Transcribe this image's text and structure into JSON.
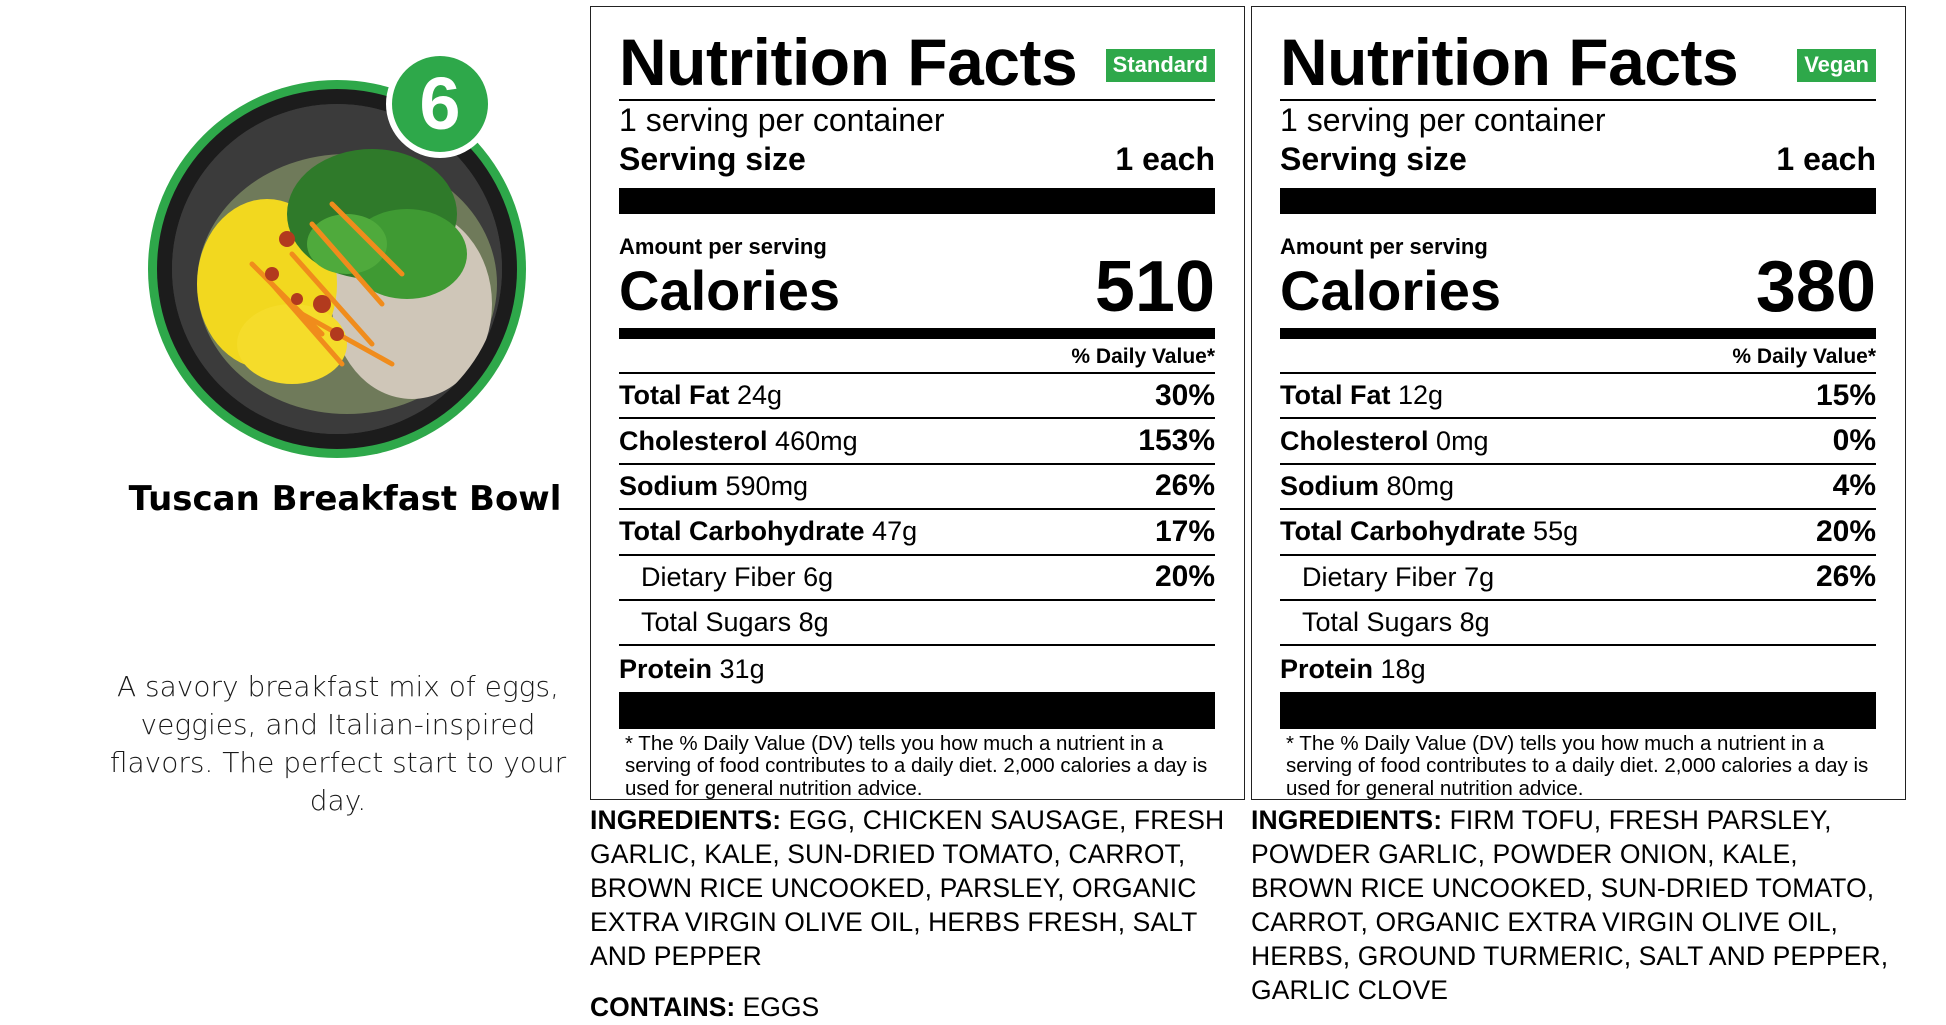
{
  "product": {
    "number": "6",
    "name": "Tuscan Breakfast Bowl",
    "description": "A savory breakfast mix of eggs, veggies, and Italian-inspired flavors. The perfect start to your day.",
    "accent_color": "#2ea84a"
  },
  "panels": [
    {
      "title": "Nutrition Facts",
      "badge": "Standard",
      "servings_per_container": "1 serving per container",
      "serving_size_label": "Serving size",
      "serving_size_value": "1 each",
      "amount_per_serving": "Amount per serving",
      "calories_label": "Calories",
      "calories_value": "510",
      "dv_header": "% Daily Value*",
      "rows": [
        {
          "name": "Total Fat",
          "amount": "24g",
          "dv": "30%"
        },
        {
          "name": "Cholesterol",
          "amount": "460mg",
          "dv": "153%"
        },
        {
          "name": "Sodium",
          "amount": "590mg",
          "dv": "26%"
        },
        {
          "name": "Total Carbohydrate",
          "amount": "47g",
          "dv": "17%"
        },
        {
          "name": "Dietary Fiber",
          "amount": "6g",
          "dv": "20%"
        },
        {
          "name": "Total Sugars",
          "amount": "8g",
          "dv": ""
        },
        {
          "name": "Protein",
          "amount": "31g",
          "dv": ""
        }
      ],
      "footnote": "* The % Daily Value (DV) tells you how much a nutrient in a serving of food contributes to a daily diet. 2,000 calories a day is used for general nutrition advice."
    },
    {
      "title": "Nutrition Facts",
      "badge": "Vegan",
      "servings_per_container": "1 serving per container",
      "serving_size_label": "Serving size",
      "serving_size_value": "1 each",
      "amount_per_serving": "Amount per serving",
      "calories_label": "Calories",
      "calories_value": "380",
      "dv_header": "% Daily Value*",
      "rows": [
        {
          "name": "Total Fat",
          "amount": "12g",
          "dv": "15%"
        },
        {
          "name": "Cholesterol",
          "amount": "0mg",
          "dv": "0%"
        },
        {
          "name": "Sodium",
          "amount": "80mg",
          "dv": "4%"
        },
        {
          "name": "Total Carbohydrate",
          "amount": "55g",
          "dv": "20%"
        },
        {
          "name": "Dietary Fiber",
          "amount": "7g",
          "dv": "26%"
        },
        {
          "name": "Total Sugars",
          "amount": "8g",
          "dv": ""
        },
        {
          "name": "Protein",
          "amount": "18g",
          "dv": ""
        }
      ],
      "footnote": "* The % Daily Value (DV) tells you how much a nutrient in a serving of food contributes to a daily diet. 2,000 calories a day is used for general nutrition advice."
    }
  ],
  "ingredients": {
    "label": "INGREDIENTS:",
    "standard": "EGG, CHICKEN SAUSAGE, FRESH GARLIC, KALE, SUN-DRIED TOMATO, CARROT, BROWN RICE UNCOOKED, PARSLEY, ORGANIC EXTRA VIRGIN OLIVE OIL, HERBS FRESH, SALT AND PEPPER",
    "vegan": "FIRM TOFU, FRESH PARSLEY, POWDER GARLIC, POWDER ONION, KALE, BROWN RICE UNCOOKED, SUN-DRIED TOMATO, CARROT, ORGANIC EXTRA VIRGIN OLIVE OIL, HERBS, GROUND TURMERIC, SALT AND PEPPER, GARLIC CLOVE"
  },
  "contains": {
    "label": "CONTAINS:",
    "value": "EGGS"
  }
}
